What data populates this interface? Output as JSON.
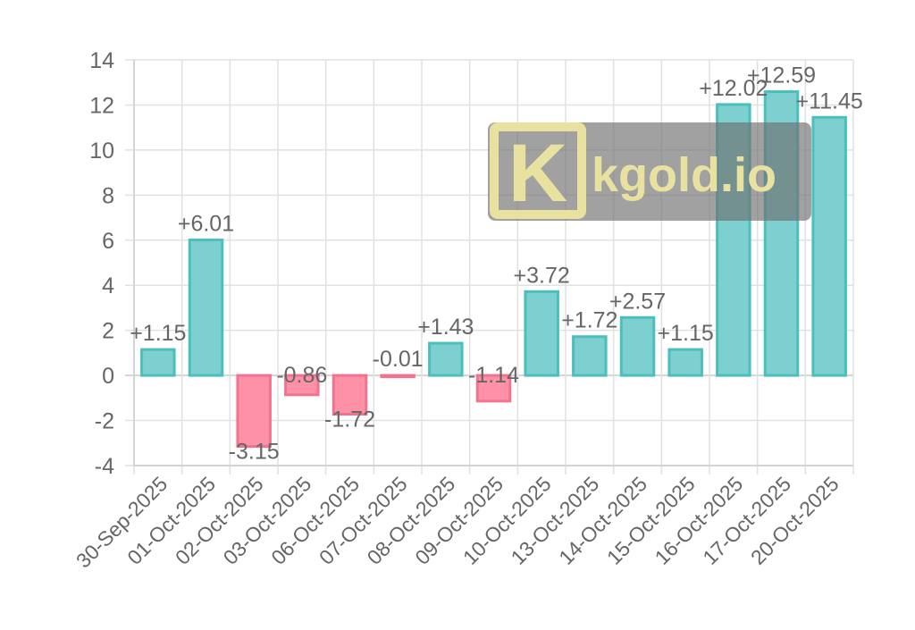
{
  "chart_data": {
    "type": "bar",
    "categories": [
      "30-Sep-2025",
      "01-Oct-2025",
      "02-Oct-2025",
      "03-Oct-2025",
      "06-Oct-2025",
      "07-Oct-2025",
      "08-Oct-2025",
      "09-Oct-2025",
      "10-Oct-2025",
      "13-Oct-2025",
      "14-Oct-2025",
      "15-Oct-2025",
      "16-Oct-2025",
      "17-Oct-2025",
      "20-Oct-2025"
    ],
    "values": [
      1.15,
      6.01,
      -3.15,
      -0.86,
      -1.72,
      -0.01,
      1.43,
      -1.14,
      3.72,
      1.72,
      2.57,
      1.15,
      12.02,
      12.59,
      11.45
    ],
    "data_labels": [
      "+1.15",
      "+6.01",
      "-3.15",
      "-0.86",
      "-1.72",
      "-0.01",
      "+1.43",
      "-1.14",
      "+3.72",
      "+1.72",
      "+2.57",
      "+1.15",
      "+12.02",
      "+12.59",
      "+11.45"
    ],
    "ylim": [
      -4,
      14
    ],
    "yticks": [
      -4,
      -2,
      0,
      2,
      4,
      6,
      8,
      10,
      12,
      14
    ],
    "title": "",
    "xlabel": "",
    "ylabel": "",
    "grid": true,
    "legend": "none",
    "colors": {
      "positive_fill": "#7dd0cf",
      "positive_stroke": "#4bbfbc",
      "negative_fill": "#ff91a7",
      "negative_stroke": "#f2738f"
    }
  },
  "watermark": {
    "logo_letter": "K",
    "text": "kgold.io"
  }
}
